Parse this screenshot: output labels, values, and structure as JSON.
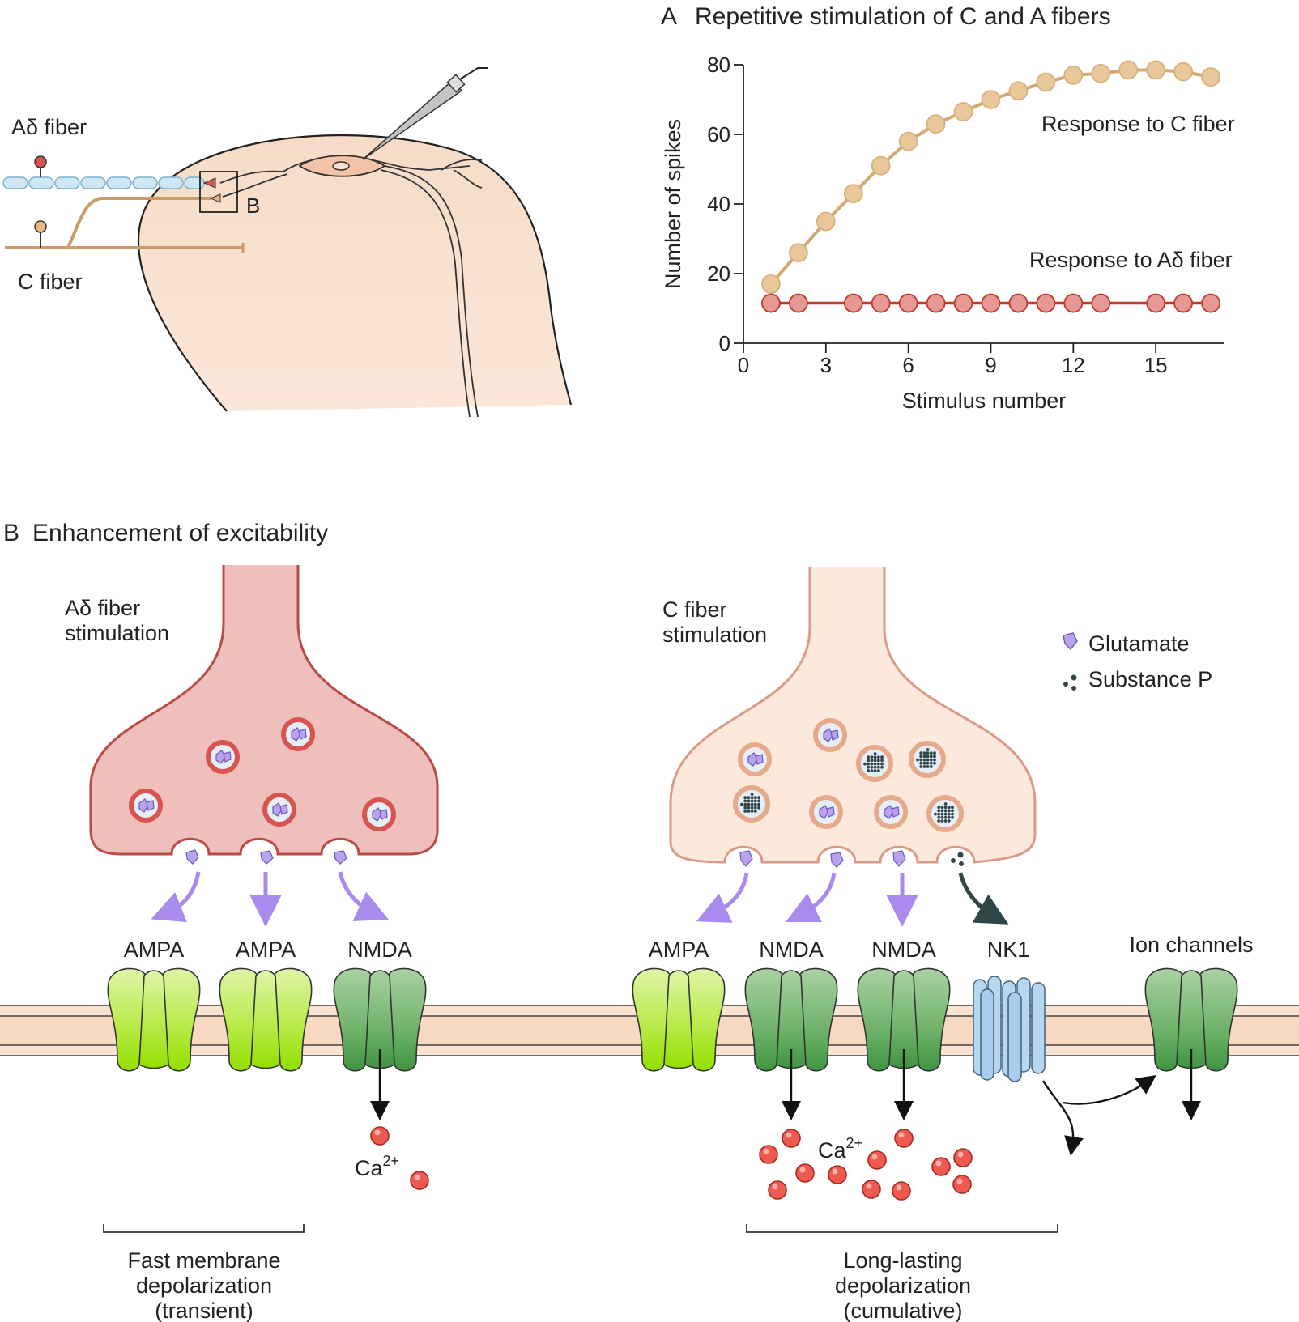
{
  "panel_a": {
    "letter": "A",
    "title": "Repetitive stimulation of C and A fibers"
  },
  "schematic": {
    "adelta_label": "Aδ fiber",
    "c_label": "C fiber",
    "box_label": "B"
  },
  "panel_b": {
    "letter": "B",
    "title": "Enhancement of excitability",
    "adelta_stim": [
      "Aδ fiber",
      "stimulation"
    ],
    "c_stim": [
      "C fiber",
      "stimulation"
    ],
    "legend": {
      "glutamate": "Glutamate",
      "substance_p": "Substance P"
    },
    "receptors_left": [
      "AMPA",
      "AMPA",
      "NMDA"
    ],
    "receptors_right": [
      "AMPA",
      "NMDA",
      "NMDA",
      "NK1"
    ],
    "ion_channels": "Ion channels",
    "ca_left": {
      "base": "Ca",
      "sup": "2+"
    },
    "ca_right": {
      "base": "Ca",
      "sup": "2+"
    },
    "bracket_left": [
      "Fast membrane",
      "depolarization",
      "(transient)"
    ],
    "bracket_right": [
      "Long-lasting",
      "depolarization",
      "(cumulative)"
    ]
  },
  "chart_data": {
    "type": "scatter",
    "title": "Repetitive stimulation of C and A fibers",
    "xlabel": "Stimulus number",
    "ylabel": "Number of spikes",
    "xlim": [
      0,
      17.5
    ],
    "ylim": [
      0,
      80
    ],
    "xticks": [
      0,
      3,
      6,
      9,
      12,
      15
    ],
    "yticks": [
      0,
      20,
      40,
      60,
      80
    ],
    "series": [
      {
        "name": "Response to C fiber",
        "color": "#e8c79a",
        "stroke": "#d4a870",
        "x": [
          1,
          2,
          3,
          4,
          5,
          6,
          7,
          8,
          9,
          10,
          11,
          12,
          13,
          14,
          15,
          16,
          17
        ],
        "y": [
          17,
          26,
          35,
          43,
          51,
          58,
          63,
          66.5,
          70,
          72.5,
          75,
          77,
          77.5,
          78.5,
          78.5,
          78,
          76.5
        ]
      },
      {
        "name": "Response to Aδ fiber",
        "color": "#e69894",
        "stroke": "#c0392b",
        "x": [
          1,
          2,
          4,
          5,
          6,
          7,
          8,
          9,
          10,
          11,
          12,
          13,
          15,
          16,
          17
        ],
        "y": [
          11.5,
          11.5,
          11.5,
          11.5,
          11.5,
          11.5,
          11.5,
          11.5,
          11.5,
          11.5,
          11.5,
          11.5,
          11.5,
          11.5,
          11.5
        ]
      }
    ]
  }
}
